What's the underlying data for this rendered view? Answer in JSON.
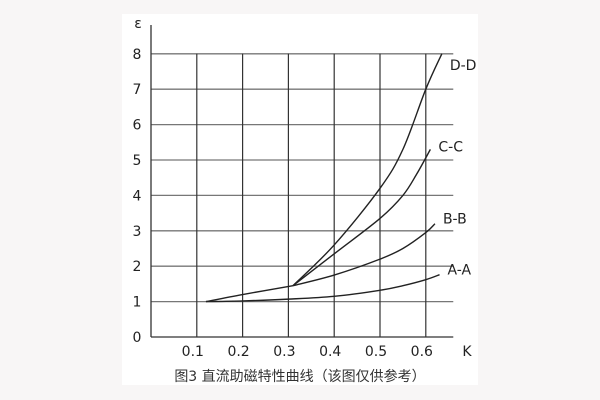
{
  "caption": "图3 直流助磁特性曲线（该图仅供参考）",
  "chart_data": {
    "type": "line",
    "title": "",
    "xlabel": "K",
    "ylabel": "ε",
    "xlim": [
      0,
      0.66
    ],
    "ylim": [
      0,
      8
    ],
    "xticks": [
      "0.1",
      "0.2",
      "0.3",
      "0.4",
      "0.5",
      "0.6"
    ],
    "yticks": [
      "0",
      "1",
      "2",
      "3",
      "4",
      "5",
      "6",
      "7",
      "8"
    ],
    "grid": true,
    "line_color": "#222222",
    "series": [
      {
        "name": "A-A",
        "x": [
          0.12,
          0.2,
          0.3,
          0.4,
          0.5,
          0.55,
          0.6,
          0.63
        ],
        "y": [
          1,
          1.02,
          1.07,
          1.15,
          1.32,
          1.45,
          1.62,
          1.76
        ]
      },
      {
        "name": "",
        "x": [
          0.12,
          0.2,
          0.31
        ],
        "y": [
          1,
          1.2,
          1.45
        ]
      },
      {
        "name": "B-B",
        "x": [
          0.31,
          0.4,
          0.5,
          0.55,
          0.6,
          0.62
        ],
        "y": [
          1.45,
          1.75,
          2.2,
          2.5,
          2.95,
          3.2
        ]
      },
      {
        "name": "C-C",
        "x": [
          0.31,
          0.4,
          0.5,
          0.55,
          0.58,
          0.61
        ],
        "y": [
          1.45,
          2.35,
          3.35,
          4.0,
          4.6,
          5.3
        ]
      },
      {
        "name": "D-D",
        "x": [
          0.31,
          0.4,
          0.5,
          0.55,
          0.6,
          0.635
        ],
        "y": [
          1.45,
          2.6,
          4.2,
          5.3,
          7.0,
          8.0
        ]
      }
    ]
  }
}
